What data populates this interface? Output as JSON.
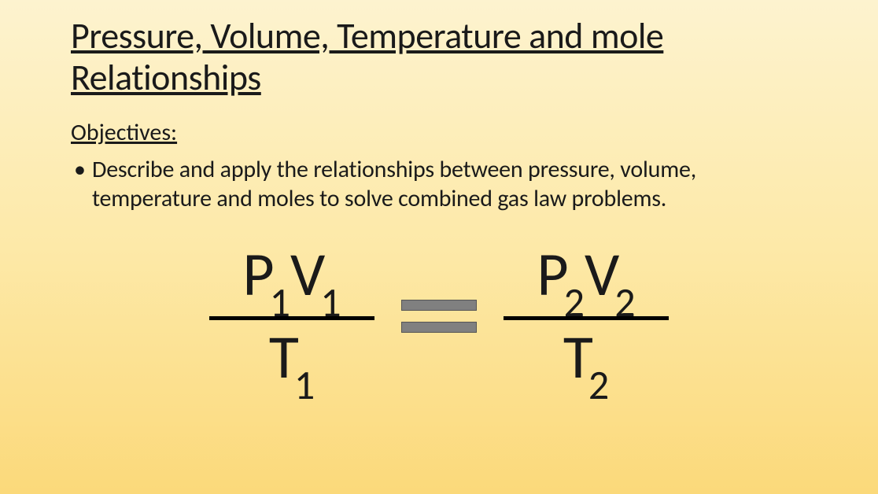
{
  "slide": {
    "title": "Pressure, Volume, Temperature and mole Relationships",
    "objectives_label": "Objectives:",
    "bullet": "Describe and apply the relationships between pressure, volume, temperature and moles to solve combined gas law problems."
  },
  "equation": {
    "left": {
      "num_P": "P",
      "num_P_sub": "1",
      "num_V": "V",
      "num_V_sub": "1",
      "den_T": "T",
      "den_T_sub": "1"
    },
    "right": {
      "num_P": "P",
      "num_P_sub": "2",
      "num_V": "V",
      "num_V_sub": "2",
      "den_T": "T",
      "den_T_sub": "2"
    }
  },
  "style": {
    "background_gradient_top": "#fdf3cf",
    "background_gradient_mid": "#fde9a8",
    "background_gradient_bottom": "#fbd97a",
    "text_color": "#1a1a1a",
    "title_fontsize": 46,
    "objectives_fontsize": 30,
    "bullet_fontsize": 30,
    "equation_fontsize": 78,
    "subscript_fontsize": 52,
    "fraction_bar_color": "#000000",
    "fraction_bar_width": 210,
    "fraction_bar_height": 5,
    "equals_bar_color": "#808080",
    "equals_bar_width": 96,
    "equals_bar_height": 14,
    "equals_bar_gap": 14,
    "font_family": "Calibri"
  }
}
